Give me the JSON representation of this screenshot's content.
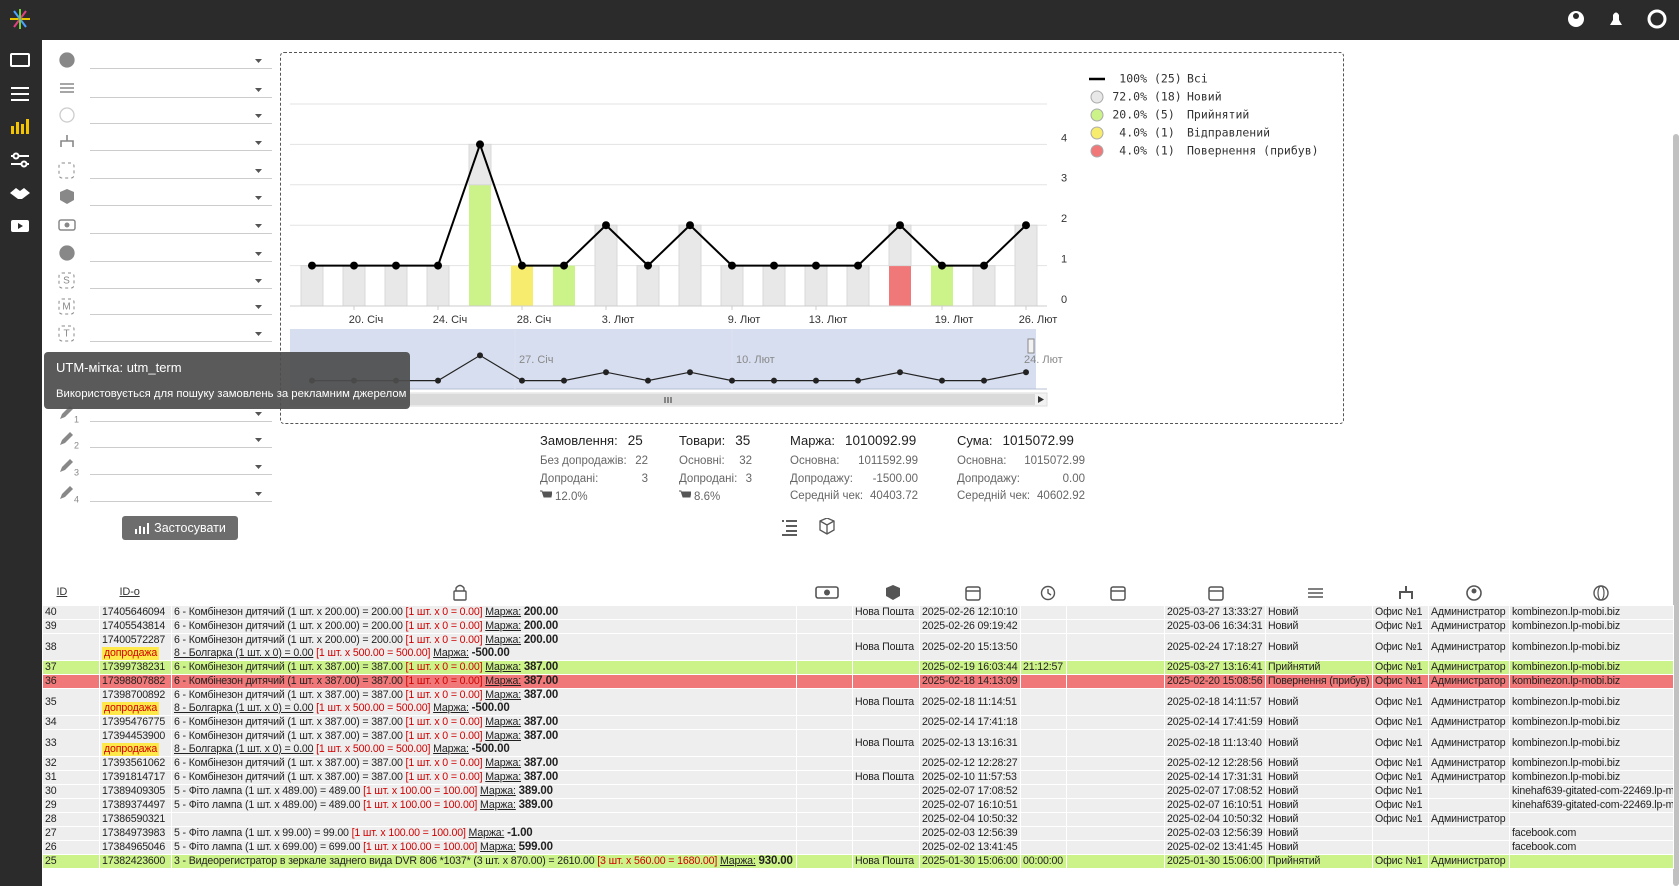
{
  "tooltip": {
    "title": "UTM-мітка: utm_term",
    "text": "Використовується для пошуку замовлень за рекламним джерелом"
  },
  "filters": {
    "utm_icons": [
      "S",
      "M",
      "T"
    ],
    "custom_icons": [
      "1",
      "2",
      "3",
      "4"
    ],
    "apply_button": "Застосувати"
  },
  "chart_data": {
    "type": "bar",
    "categories": [
      null,
      "20. Січ",
      null,
      "24. Січ",
      null,
      "28. Січ",
      null,
      "3. Лют",
      null,
      null,
      "9. Лют",
      null,
      "13. Лют",
      null,
      null,
      "19. Лют",
      null,
      "26. Лют"
    ],
    "series": [
      {
        "name": "Всі",
        "type": "line",
        "color": "#000000",
        "share": "100%",
        "count": "(25)",
        "values": [
          1,
          1,
          1,
          1,
          4,
          1,
          1,
          2,
          1,
          2,
          1,
          1,
          1,
          1,
          2,
          1,
          1,
          2
        ]
      },
      {
        "name": "Новий",
        "color": "#e8e8e8",
        "share": "72.0%",
        "count": "(18)",
        "values": [
          1,
          1,
          1,
          1,
          1,
          0,
          0,
          2,
          1,
          2,
          1,
          1,
          1,
          1,
          1,
          0,
          1,
          2
        ]
      },
      {
        "name": "Прийнятий",
        "color": "#ccf28a",
        "share": "20.0%",
        "count": "(5)",
        "values": [
          0,
          0,
          0,
          0,
          3,
          0,
          1,
          0,
          0,
          0,
          0,
          0,
          0,
          0,
          0,
          1,
          0,
          0
        ]
      },
      {
        "name": "Відправлений",
        "color": "#f7ec6e",
        "share": "4.0%",
        "count": "(1)",
        "values": [
          0,
          0,
          0,
          0,
          0,
          1,
          0,
          0,
          0,
          0,
          0,
          0,
          0,
          0,
          0,
          0,
          0,
          0
        ]
      },
      {
        "name": "Повернення (прибув)",
        "color": "#f07878",
        "share": "4.0%",
        "count": "(1)",
        "values": [
          0,
          0,
          0,
          0,
          0,
          0,
          0,
          0,
          0,
          0,
          0,
          0,
          0,
          0,
          1,
          0,
          0,
          0
        ]
      }
    ],
    "ylim": [
      0,
      5
    ],
    "yticks": [
      0,
      1,
      2,
      3,
      4
    ],
    "grid": true,
    "navigator_labels": [
      "27. Січ",
      "10. Лют",
      "24. Лют"
    ]
  },
  "summary": [
    {
      "label": "Замовлення:",
      "value": "25",
      "rows": [
        {
          "label": "Без допродажів:",
          "value": "22"
        },
        {
          "label": "Допродані:",
          "value": "3"
        },
        {
          "percent": "12.0%"
        }
      ]
    },
    {
      "label": "Товари:",
      "value": "35",
      "rows": [
        {
          "label": "Основні:",
          "value": "32"
        },
        {
          "label": "Допродані:",
          "value": "3"
        },
        {
          "percent": "8.6%"
        }
      ]
    },
    {
      "label": "Маржа:",
      "value": "1010092.99",
      "rows": [
        {
          "label": "Основна:",
          "value": "1011592.99"
        },
        {
          "label": "Допродажу:",
          "value": "-1500.00"
        },
        {
          "label": "Середній чек:",
          "value": "40403.72"
        }
      ]
    },
    {
      "label": "Сума:",
      "value": "1015072.99",
      "rows": [
        {
          "label": "Основна:",
          "value": "1015072.99"
        },
        {
          "label": "Допродажу:",
          "value": "0.00"
        },
        {
          "label": "Середній чек:",
          "value": "40602.92"
        }
      ]
    }
  ],
  "table": {
    "headers": [
      "ID",
      "ID-o"
    ],
    "rows": [
      {
        "id": "40",
        "order": "17405646094",
        "items": [
          {
            "name": "6 - Комбінезон дитячий (1 шт. x 200.00) = 200.00",
            "cost": "[1 шт. x 0 = 0.00]",
            "margin_label": "Маржа:",
            "margin": "200.00"
          }
        ],
        "delivery": "Нова Пошта",
        "created": "2025-02-26 12:10:10",
        "updated": "2025-03-27 13:33:27",
        "status": "Новий",
        "office": "Офис №1",
        "manager": "Администратор",
        "site": "kombinezon.lp-mobi.biz"
      },
      {
        "id": "39",
        "order": "17405543814",
        "items": [
          {
            "name": "6 - Комбінезон дитячий (1 шт. x 200.00) = 200.00",
            "cost": "[1 шт. x 0 = 0.00]",
            "margin_label": "Маржа:",
            "margin": "200.00"
          }
        ],
        "created": "2025-02-26 09:19:42",
        "updated": "2025-03-06 16:34:31",
        "status": "Новий",
        "office": "Офис №1",
        "manager": "Администратор",
        "site": "kombinezon.lp-mobi.biz"
      },
      {
        "id": "38",
        "order": "17400572287",
        "items": [
          {
            "name": "6 - Комбінезон дитячий (1 шт. x 200.00) = 200.00",
            "cost": "[1 шт. x 0 = 0.00]",
            "margin_label": "Маржа:",
            "margin": "200.00"
          },
          {
            "badge": "допродажа",
            "name": "8 - Болгарка (1 шт. x 0) = 0.00",
            "cost": "[1 шт. x 500.00 = 500.00]",
            "margin_label": "Маржа:",
            "margin": "-500.00"
          }
        ],
        "delivery": "Нова Пошта",
        "created": "2025-02-20 15:13:50",
        "updated": "2025-02-24 17:18:27",
        "status": "Новий",
        "office": "Офис №1",
        "manager": "Администратор",
        "site": "kombinezon.lp-mobi.biz"
      },
      {
        "id": "37",
        "order": "17399738231",
        "row_color": "#ccf28a",
        "items": [
          {
            "name": "6 - Комбінезон дитячий (1 шт. x 387.00) = 387.00",
            "cost": "[1 шт. x 0 = 0.00]",
            "margin_label": "Маржа:",
            "margin": "387.00"
          }
        ],
        "created": "2025-02-19 16:03:44",
        "time": "21:12:57",
        "updated": "2025-03-27 13:16:41",
        "status": "Прийнятий",
        "office": "Офис №1",
        "manager": "Администратор",
        "site": "kombinezon.lp-mobi.biz"
      },
      {
        "id": "36",
        "order": "17398807882",
        "row_color": "#f07878",
        "items": [
          {
            "name": "6 - Комбінезон дитячий (1 шт. x 387.00) = 387.00",
            "cost": "[1 шт. x 0 = 0.00]",
            "margin_label": "Маржа:",
            "margin": "387.00"
          }
        ],
        "created": "2025-02-18 14:13:09",
        "updated": "2025-02-20 15:08:56",
        "status": "Повернення (прибув)",
        "office": "Офис №1",
        "manager": "Администратор",
        "site": "kombinezon.lp-mobi.biz"
      },
      {
        "id": "35",
        "order": "17398700892",
        "items": [
          {
            "name": "6 - Комбінезон дитячий (1 шт. x 387.00) = 387.00",
            "cost": "[1 шт. x 0 = 0.00]",
            "margin_label": "Маржа:",
            "margin": "387.00"
          },
          {
            "badge": "допродажа",
            "name": "8 - Болгарка (1 шт. x 0) = 0.00",
            "cost": "[1 шт. x 500.00 = 500.00]",
            "margin_label": "Маржа:",
            "margin": "-500.00"
          }
        ],
        "delivery": "Нова Пошта",
        "created": "2025-02-18 11:14:51",
        "updated": "2025-02-18 14:11:57",
        "status": "Новий",
        "office": "Офис №1",
        "manager": "Администратор",
        "site": "kombinezon.lp-mobi.biz"
      },
      {
        "id": "34",
        "order": "17395476775",
        "items": [
          {
            "name": "6 - Комбінезон дитячий (1 шт. x 387.00) = 387.00",
            "cost": "[1 шт. x 0 = 0.00]",
            "margin_label": "Маржа:",
            "margin": "387.00"
          }
        ],
        "created": "2025-02-14 17:41:18",
        "updated": "2025-02-14 17:41:59",
        "status": "Новий",
        "office": "Офис №1",
        "manager": "Администратор",
        "site": "kombinezon.lp-mobi.biz"
      },
      {
        "id": "33",
        "order": "17394453900",
        "items": [
          {
            "name": "6 - Комбінезон дитячий (1 шт. x 387.00) = 387.00",
            "cost": "[1 шт. x 0 = 0.00]",
            "margin_label": "Маржа:",
            "margin": "387.00"
          },
          {
            "badge": "допродажа",
            "name": "8 - Болгарка (1 шт. x 0) = 0.00",
            "cost": "[1 шт. x 500.00 = 500.00]",
            "margin_label": "Маржа:",
            "margin": "-500.00"
          }
        ],
        "delivery": "Нова Пошта",
        "created": "2025-02-13 13:16:31",
        "updated": "2025-02-18 11:13:40",
        "status": "Новий",
        "office": "Офис №1",
        "manager": "Администратор",
        "site": "kombinezon.lp-mobi.biz"
      },
      {
        "id": "32",
        "order": "17393561062",
        "items": [
          {
            "name": "6 - Комбінезон дитячий (1 шт. x 387.00) = 387.00",
            "cost": "[1 шт. x 0 = 0.00]",
            "margin_label": "Маржа:",
            "margin": "387.00"
          }
        ],
        "created": "2025-02-12 12:28:27",
        "updated": "2025-02-12 12:28:56",
        "status": "Новий",
        "office": "Офис №1",
        "manager": "Администратор",
        "site": "kombinezon.lp-mobi.biz"
      },
      {
        "id": "31",
        "order": "17391814717",
        "items": [
          {
            "name": "6 - Комбінезон дитячий (1 шт. x 387.00) = 387.00",
            "cost": "[1 шт. x 0 = 0.00]",
            "margin_label": "Маржа:",
            "margin": "387.00"
          }
        ],
        "delivery": "Нова Пошта",
        "created": "2025-02-10 11:57:53",
        "updated": "2025-02-14 17:31:31",
        "status": "Новий",
        "office": "Офис №1",
        "manager": "Администратор",
        "site": "kombinezon.lp-mobi.biz"
      },
      {
        "id": "30",
        "order": "17389409305",
        "items": [
          {
            "name": "5 - Фіто лампа (1 шт. x 489.00) = 489.00",
            "cost": "[1 шт. x 100.00 = 100.00]",
            "margin_label": "Маржа:",
            "margin": "389.00"
          }
        ],
        "created": "2025-02-07 17:08:52",
        "updated": "2025-02-07 17:08:52",
        "status": "Новий",
        "office": "Офис №1",
        "site": "kinehaf639-gitated-com-22469.lp-m"
      },
      {
        "id": "29",
        "order": "17389374497",
        "items": [
          {
            "name": "5 - Фіто лампа (1 шт. x 489.00) = 489.00",
            "cost": "[1 шт. x 100.00 = 100.00]",
            "margin_label": "Маржа:",
            "margin": "389.00"
          }
        ],
        "created": "2025-02-07 16:10:51",
        "updated": "2025-02-07 16:10:51",
        "status": "Новий",
        "office": "Офис №1",
        "site": "kinehaf639-gitated-com-22469.lp-m"
      },
      {
        "id": "28",
        "order": "17386590321",
        "created": "2025-02-04 10:50:32",
        "updated": "2025-02-04 10:50:32",
        "status": "Новий",
        "office": "Офис №1",
        "manager": "Администратор"
      },
      {
        "id": "27",
        "order": "17384973983",
        "items": [
          {
            "name": "5 - Фіто лампа (1 шт. x 99.00) = 99.00",
            "cost": "[1 шт. x 100.00 = 100.00]",
            "margin_label": "Маржа:",
            "margin": "-1.00"
          }
        ],
        "created": "2025-02-03 12:56:39",
        "updated": "2025-02-03 12:56:39",
        "status": "Новий",
        "site": "facebook.com"
      },
      {
        "id": "26",
        "order": "17384965046",
        "items": [
          {
            "name": "5 - Фіто лампа (1 шт. x 699.00) = 699.00",
            "cost": "[1 шт. x 100.00 = 100.00]",
            "margin_label": "Маржа:",
            "margin": "599.00"
          }
        ],
        "created": "2025-02-02 13:41:45",
        "updated": "2025-02-02 13:41:45",
        "status": "Новий",
        "site": "facebook.com"
      },
      {
        "id": "25",
        "order": "17382423600",
        "row_color": "#ccf28a",
        "items": [
          {
            "name": "3 - Видеорегистратор в зеркале заднего вида DVR 806 *1037* (3 шт. x 870.00) = 2610.00",
            "cost": "[3 шт. x 560.00 = 1680.00]",
            "margin_label": "Маржа:",
            "margin": "930.00"
          }
        ],
        "delivery": "Нова Пошта",
        "created": "2025-01-30 15:06:00",
        "time": "00:00:00",
        "updated": "2025-01-30 15:06:00",
        "status": "Прийнятий",
        "office": "Офис №1",
        "manager": "Администратор"
      }
    ]
  }
}
